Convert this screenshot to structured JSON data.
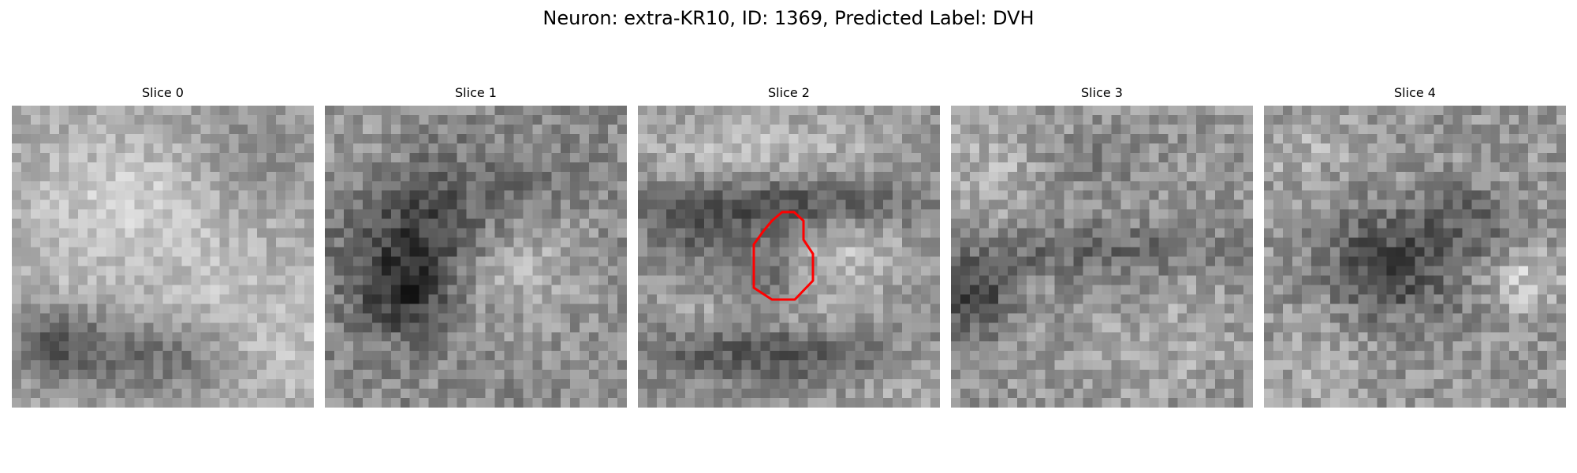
{
  "figure": {
    "title": "Neuron: extra-KR10, ID: 1369, Predicted Label: DVH"
  },
  "slices": [
    {
      "title": "Slice 0",
      "has_roi": false
    },
    {
      "title": "Slice 1",
      "has_roi": false
    },
    {
      "title": "Slice 2",
      "has_roi": true
    },
    {
      "title": "Slice 3",
      "has_roi": false
    },
    {
      "title": "Slice 4",
      "has_roi": false
    }
  ],
  "image": {
    "colormap": "grayscale",
    "grid_cells": 32
  },
  "roi": {
    "outline_color": "#ff0000"
  }
}
